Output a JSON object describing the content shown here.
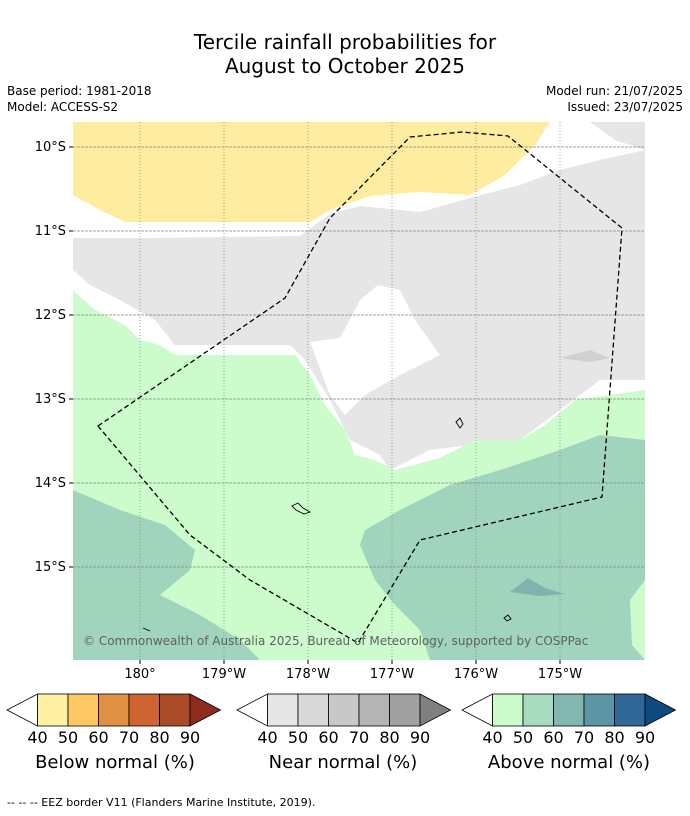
{
  "title_line1": "Tercile rainfall probabilities for",
  "title_line2": "August to October 2025",
  "meta": {
    "base_period": "Base period: 1981-2018",
    "model": "Model: ACCESS-S2",
    "model_run": "Model run: 21/07/2025",
    "issued": "Issued: 23/07/2025"
  },
  "map": {
    "lat_labels": [
      "10°S",
      "11°S",
      "12°S",
      "13°S",
      "14°S",
      "15°S"
    ],
    "lon_labels": [
      "180°",
      "179°W",
      "178°W",
      "177°W",
      "176°W",
      "175°W"
    ],
    "copyright": "© Commonwealth of Australia 2025, Bureau of Meteorology, supported by COSPPac"
  },
  "legends": [
    {
      "name": "Below normal (%)",
      "ticks": [
        "40",
        "50",
        "60",
        "70",
        "80",
        "90"
      ],
      "colors": [
        "#fef0a2",
        "#fdc762",
        "#e09042",
        "#cf6331",
        "#a94a28",
        "#8f2a1e"
      ]
    },
    {
      "name": "Near normal (%)",
      "ticks": [
        "40",
        "50",
        "60",
        "70",
        "80",
        "90"
      ],
      "colors": [
        "#e6e6e6",
        "#d8d8d8",
        "#c8c8c8",
        "#b4b4b4",
        "#a0a0a0",
        "#808080"
      ]
    },
    {
      "name": "Above normal (%)",
      "ticks": [
        "40",
        "50",
        "60",
        "70",
        "80",
        "90"
      ],
      "colors": [
        "#ccfccc",
        "#a8dcc0",
        "#82b8b0",
        "#5c96a4",
        "#306898",
        "#0e4a80"
      ]
    }
  ],
  "footnote": "--  --  -- EEZ border V11 (Flanders Marine Institute, 2019)."
}
